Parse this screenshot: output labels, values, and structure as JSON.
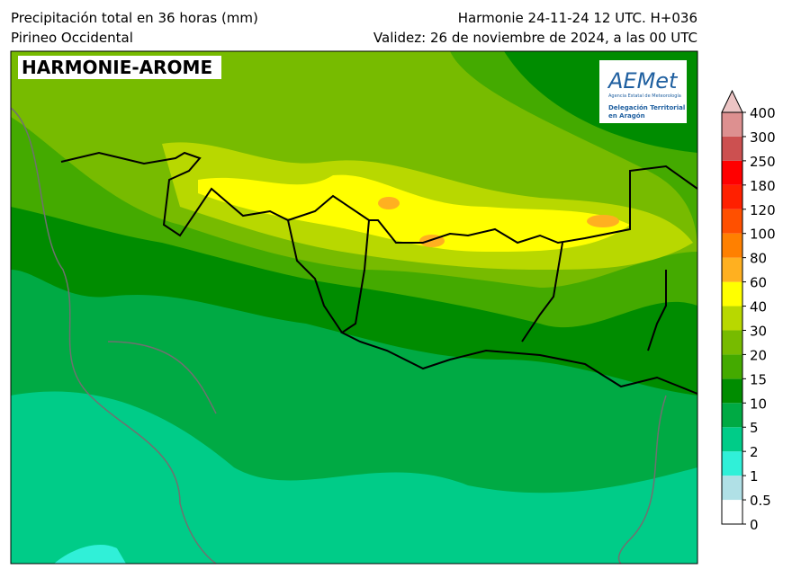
{
  "header": {
    "title_left": "Precipitación total en 36 horas (mm)",
    "subtitle_left": "Pirineo Occidental",
    "title_right": "Harmonie 24-11-24 12 UTC. H+036",
    "subtitle_right": "Validez: 26 de noviembre de 2024, a las 00 UTC"
  },
  "map": {
    "model_label": "HARMONIE-AROME",
    "logo": {
      "brand": "AEMet",
      "agency": "Agencia Estatal de Meteorología",
      "office_line1": "Delegación Territorial",
      "office_line2": "en Aragón"
    }
  },
  "colorbar": {
    "levels": [
      0,
      0.5,
      1,
      2,
      5,
      10,
      15,
      20,
      30,
      40,
      60,
      80,
      100,
      120,
      180,
      250,
      300,
      400
    ],
    "colors": [
      "#ffffff",
      "#b0e0e6",
      "#30f0d8",
      "#00cc88",
      "#00aa44",
      "#008c00",
      "#44aa00",
      "#77bb00",
      "#b8d800",
      "#ffff00",
      "#ffb020",
      "#ff8000",
      "#ff5000",
      "#ff2000",
      "#ff0000",
      "#cc5050",
      "#dd9090"
    ],
    "extend_color": "#ecc4c4"
  }
}
